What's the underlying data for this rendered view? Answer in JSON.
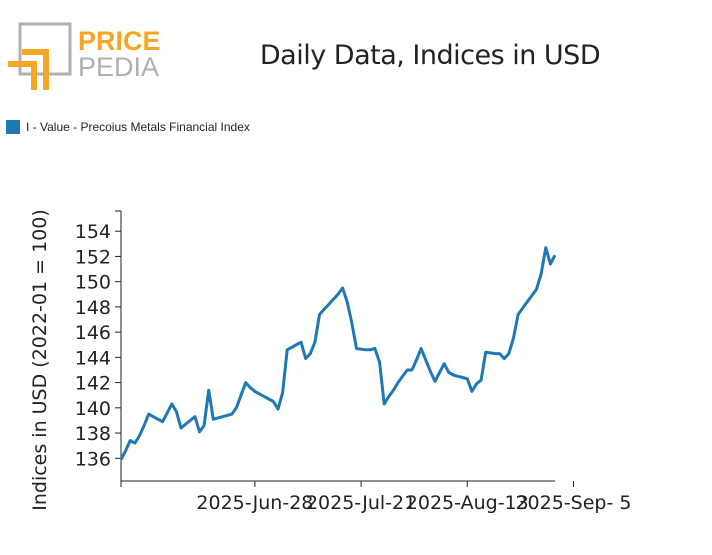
{
  "logo": {
    "line1": "PRICE",
    "line2": "PEDIA",
    "brand_color": "#f5a623",
    "frame_color": "#b0b0b0"
  },
  "title": "Daily Data, Indices in USD",
  "legend": {
    "label": "I - Value - Precoius Metals Financial Index",
    "color": "#1f77b4"
  },
  "chart_data": {
    "type": "line",
    "title": "Daily Data, Indices in USD",
    "xlabel": "",
    "ylabel": "Indices in USD (2022-01 = 100)",
    "ylim": [
      134.2,
      155.6
    ],
    "y_ticks": [
      136,
      138,
      140,
      142,
      144,
      146,
      148,
      150,
      152,
      154
    ],
    "x_tick_labels": [
      "2025-Jun-28",
      "2025-Jul-21",
      "2025-Aug-13",
      "2025-Sep- 5"
    ],
    "x_tick_indices": [
      29,
      52,
      75,
      98
    ],
    "grid": false,
    "legend_position": "top-left",
    "series": [
      {
        "name": "I - Value - Precoius Metals Financial Index",
        "color": "#1f77b4",
        "values": [
          135.9,
          136.6,
          137.4,
          137.2,
          137.8,
          138.6,
          139.5,
          139.3,
          139.1,
          138.9,
          139.6,
          140.3,
          139.7,
          138.4,
          138.7,
          139.0,
          139.3,
          138.1,
          138.6,
          141.4,
          139.1,
          139.2,
          139.3,
          139.4,
          139.5,
          140.0,
          141.0,
          142.0,
          141.6,
          141.3,
          141.1,
          140.9,
          140.7,
          140.5,
          139.9,
          141.2,
          144.6,
          144.8,
          145.0,
          145.2,
          143.9,
          144.3,
          145.2,
          147.4,
          147.8,
          148.2,
          148.6,
          149.0,
          149.5,
          148.4,
          146.7,
          144.7,
          144.65,
          144.6,
          144.6,
          144.7,
          143.6,
          140.3,
          140.9,
          141.4,
          142.0,
          142.5,
          143.0,
          143.0,
          143.8,
          144.7,
          143.8,
          142.9,
          142.1,
          142.8,
          143.5,
          142.8,
          142.6,
          142.5,
          142.4,
          142.3,
          141.3,
          141.9,
          142.2,
          144.4,
          144.35,
          144.3,
          144.3,
          143.9,
          144.3,
          145.5,
          147.4,
          147.9,
          148.4,
          148.9,
          149.4,
          150.6,
          152.7,
          151.4,
          152.1
        ]
      }
    ]
  }
}
